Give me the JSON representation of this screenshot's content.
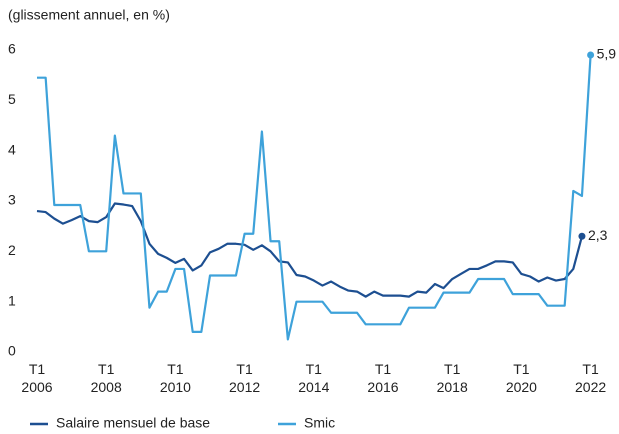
{
  "chart_data": {
    "type": "line",
    "title": "(glissement annuel, en %)",
    "xlim": [
      2006,
      2022
    ],
    "xticks": [
      {
        "value": 2006,
        "label": "T1 2006"
      },
      {
        "value": 2008,
        "label": "T1 2008"
      },
      {
        "value": 2010,
        "label": "T1 2010"
      },
      {
        "value": 2012,
        "label": "T1 2012"
      },
      {
        "value": 2014,
        "label": "T1 2014"
      },
      {
        "value": 2016,
        "label": "T1 2016"
      },
      {
        "value": 2018,
        "label": "T1 2018"
      },
      {
        "value": 2020,
        "label": "T1 2020"
      },
      {
        "value": 2022,
        "label": "T1 2022"
      }
    ],
    "ylim": [
      0,
      6
    ],
    "yticks": [
      0,
      1,
      2,
      3,
      4,
      5,
      6
    ],
    "grid": false,
    "legend": "bottom",
    "series": [
      {
        "name": "Salaire mensuel de base",
        "color": "#1d4f91",
        "end_label": "2,3",
        "x": [
          2006,
          2006.25,
          2006.5,
          2006.75,
          2007,
          2007.25,
          2007.5,
          2007.75,
          2008,
          2008.25,
          2008.5,
          2008.75,
          2009,
          2009.25,
          2009.5,
          2009.75,
          2010,
          2010.25,
          2010.5,
          2010.75,
          2011,
          2011.25,
          2011.5,
          2011.75,
          2012,
          2012.25,
          2012.5,
          2012.75,
          2013,
          2013.25,
          2013.5,
          2013.75,
          2014,
          2014.25,
          2014.5,
          2014.75,
          2015,
          2015.25,
          2015.5,
          2015.75,
          2016,
          2016.25,
          2016.5,
          2016.75,
          2017,
          2017.25,
          2017.5,
          2017.75,
          2018,
          2018.25,
          2018.5,
          2018.75,
          2019,
          2019.25,
          2019.5,
          2019.75,
          2020,
          2020.25,
          2020.5,
          2020.75,
          2021,
          2021.25,
          2021.5,
          2021.75
        ],
        "values": [
          2.8,
          2.78,
          2.65,
          2.55,
          2.62,
          2.7,
          2.6,
          2.58,
          2.68,
          2.95,
          2.93,
          2.9,
          2.6,
          2.15,
          1.95,
          1.87,
          1.77,
          1.85,
          1.62,
          1.72,
          1.98,
          2.05,
          2.15,
          2.15,
          2.13,
          2.03,
          2.12,
          2.0,
          1.8,
          1.78,
          1.53,
          1.5,
          1.42,
          1.32,
          1.4,
          1.3,
          1.22,
          1.2,
          1.1,
          1.2,
          1.12,
          1.12,
          1.12,
          1.1,
          1.2,
          1.18,
          1.35,
          1.27,
          1.45,
          1.55,
          1.65,
          1.65,
          1.72,
          1.8,
          1.8,
          1.78,
          1.55,
          1.5,
          1.4,
          1.48,
          1.42,
          1.45,
          1.65,
          2.3
        ]
      },
      {
        "name": "Smic",
        "color": "#3ea2da",
        "end_label": "5,9",
        "x": [
          2006,
          2006.25,
          2006.5,
          2006.75,
          2007,
          2007.25,
          2007.5,
          2007.75,
          2008,
          2008.25,
          2008.5,
          2008.75,
          2009,
          2009.25,
          2009.5,
          2009.75,
          2010,
          2010.25,
          2010.5,
          2010.75,
          2011,
          2011.25,
          2011.5,
          2011.75,
          2012,
          2012.25,
          2012.5,
          2012.75,
          2013,
          2013.25,
          2013.5,
          2013.75,
          2014,
          2014.25,
          2014.5,
          2014.75,
          2015,
          2015.25,
          2015.5,
          2015.75,
          2016,
          2016.25,
          2016.5,
          2016.75,
          2017,
          2017.25,
          2017.5,
          2017.75,
          2018,
          2018.25,
          2018.5,
          2018.75,
          2019,
          2019.25,
          2019.5,
          2019.75,
          2020,
          2020.25,
          2020.5,
          2020.75,
          2021,
          2021.25,
          2021.5,
          2021.75,
          2022
        ],
        "values": [
          5.45,
          5.45,
          2.92,
          2.92,
          2.92,
          2.92,
          2.0,
          2.0,
          2.0,
          4.3,
          3.15,
          3.15,
          3.15,
          0.88,
          1.2,
          1.2,
          1.65,
          1.65,
          0.4,
          0.4,
          1.52,
          1.52,
          1.52,
          1.52,
          2.35,
          2.35,
          4.38,
          2.2,
          2.2,
          0.25,
          1.0,
          1.0,
          1.0,
          1.0,
          0.78,
          0.78,
          0.78,
          0.78,
          0.55,
          0.55,
          0.55,
          0.55,
          0.55,
          0.88,
          0.88,
          0.88,
          0.88,
          1.18,
          1.18,
          1.18,
          1.18,
          1.45,
          1.45,
          1.45,
          1.45,
          1.15,
          1.15,
          1.15,
          1.15,
          0.92,
          0.92,
          0.92,
          3.2,
          3.1,
          5.9
        ]
      }
    ]
  }
}
